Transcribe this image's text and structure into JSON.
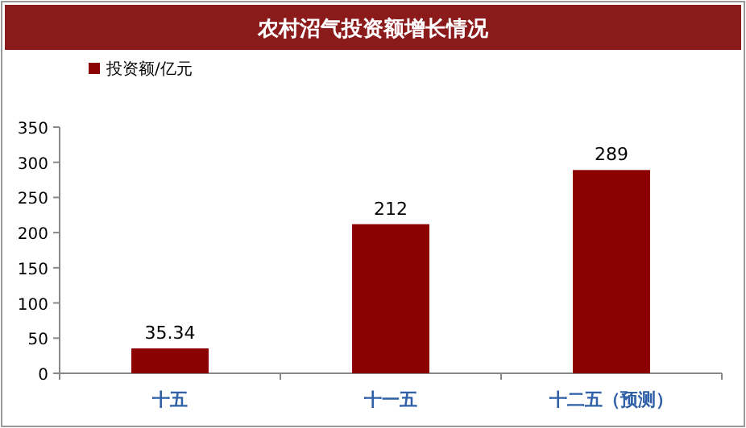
{
  "chart_data": {
    "type": "bar",
    "title": "农村沼气投资额增长情况",
    "categories": [
      "十五",
      "十一五",
      "十二五（预测）"
    ],
    "series": [
      {
        "name": "投资额/亿元",
        "color": "#8b0000",
        "values": [
          35.34,
          212,
          289
        ]
      }
    ],
    "ylim": [
      0,
      350
    ],
    "yticks": [
      0,
      50,
      100,
      150,
      200,
      250,
      300,
      350
    ],
    "data_labels": true,
    "legend": "top left",
    "grid": false
  }
}
